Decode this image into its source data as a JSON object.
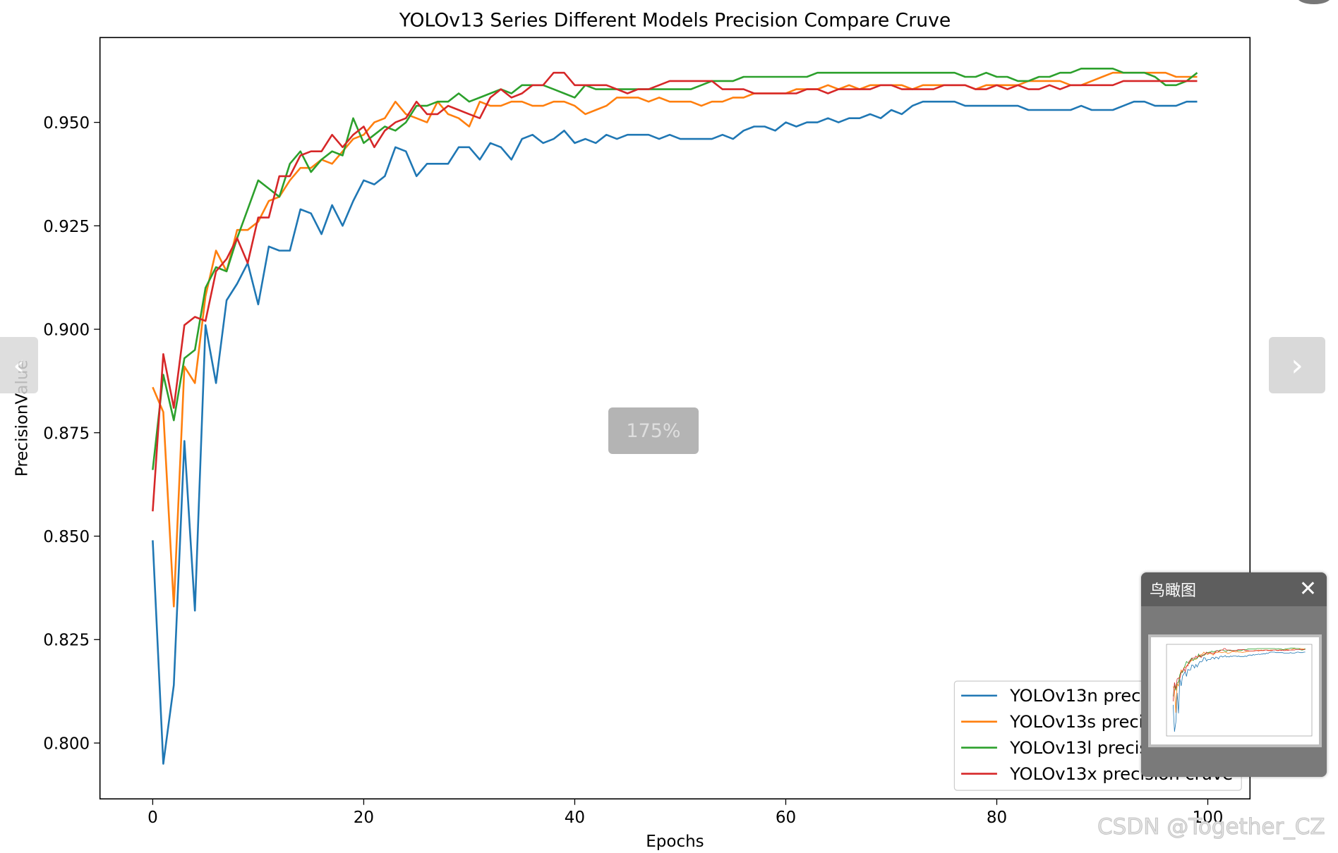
{
  "viewer": {
    "zoom_label": "175%",
    "prev_icon": "‹",
    "next_icon": "›",
    "icons": {
      "prev": "chevron-left-icon",
      "next": "chevron-right-icon",
      "close": "close-icon"
    }
  },
  "birdseye": {
    "title": "鸟瞰图",
    "close_symbol": "✕"
  },
  "watermark": "CSDN @Together_CZ",
  "chart_data": {
    "type": "line",
    "title": "YOLOv13 Series Different Models Precision Compare Cruve",
    "xlabel": "Epochs",
    "ylabel": "PrecisionValue",
    "xlim": [
      -5,
      104
    ],
    "ylim": [
      0.7865,
      0.9705
    ],
    "xticks": [
      0,
      20,
      40,
      60,
      80,
      100
    ],
    "xtick_labels": [
      "0",
      "20",
      "40",
      "60",
      "80",
      "100"
    ],
    "yticks": [
      0.8,
      0.825,
      0.85,
      0.875,
      0.9,
      0.925,
      0.95
    ],
    "ytick_labels": [
      "0.800",
      "0.825",
      "0.850",
      "0.875",
      "0.900",
      "0.925",
      "0.950"
    ],
    "grid": false,
    "legend_position": "lower-right",
    "x": [
      0,
      1,
      2,
      3,
      4,
      5,
      6,
      7,
      8,
      9,
      10,
      11,
      12,
      13,
      14,
      15,
      16,
      17,
      18,
      19,
      20,
      21,
      22,
      23,
      24,
      25,
      26,
      27,
      28,
      29,
      30,
      31,
      32,
      33,
      34,
      35,
      36,
      37,
      38,
      39,
      40,
      41,
      42,
      43,
      44,
      45,
      46,
      47,
      48,
      49,
      50,
      51,
      52,
      53,
      54,
      55,
      56,
      57,
      58,
      59,
      60,
      61,
      62,
      63,
      64,
      65,
      66,
      67,
      68,
      69,
      70,
      71,
      72,
      73,
      74,
      75,
      76,
      77,
      78,
      79,
      80,
      81,
      82,
      83,
      84,
      85,
      86,
      87,
      88,
      89,
      90,
      91,
      92,
      93,
      94,
      95,
      96,
      97,
      98,
      99
    ],
    "series": [
      {
        "name": "YOLOv13n precision cruve",
        "color": "#1f77b4",
        "values": [
          0.849,
          0.795,
          0.814,
          0.873,
          0.832,
          0.901,
          0.887,
          0.907,
          0.911,
          0.916,
          0.906,
          0.92,
          0.919,
          0.919,
          0.929,
          0.928,
          0.923,
          0.93,
          0.925,
          0.931,
          0.936,
          0.935,
          0.937,
          0.944,
          0.943,
          0.937,
          0.94,
          0.94,
          0.94,
          0.944,
          0.944,
          0.941,
          0.945,
          0.944,
          0.941,
          0.946,
          0.947,
          0.945,
          0.946,
          0.948,
          0.945,
          0.946,
          0.945,
          0.947,
          0.946,
          0.947,
          0.947,
          0.947,
          0.946,
          0.947,
          0.946,
          0.946,
          0.946,
          0.946,
          0.947,
          0.946,
          0.948,
          0.949,
          0.949,
          0.948,
          0.95,
          0.949,
          0.95,
          0.95,
          0.951,
          0.95,
          0.951,
          0.951,
          0.952,
          0.951,
          0.953,
          0.952,
          0.954,
          0.955,
          0.955,
          0.955,
          0.955,
          0.954,
          0.954,
          0.954,
          0.954,
          0.954,
          0.954,
          0.953,
          0.953,
          0.953,
          0.953,
          0.953,
          0.954,
          0.953,
          0.953,
          0.953,
          0.954,
          0.955,
          0.955,
          0.954,
          0.954,
          0.954,
          0.955,
          0.955
        ]
      },
      {
        "name": "YOLOv13s precision cruve",
        "color": "#ff7f0e",
        "values": [
          0.886,
          0.88,
          0.833,
          0.891,
          0.887,
          0.908,
          0.919,
          0.914,
          0.924,
          0.924,
          0.926,
          0.931,
          0.932,
          0.936,
          0.939,
          0.939,
          0.941,
          0.94,
          0.943,
          0.946,
          0.947,
          0.95,
          0.951,
          0.955,
          0.952,
          0.951,
          0.95,
          0.955,
          0.952,
          0.951,
          0.949,
          0.955,
          0.954,
          0.954,
          0.955,
          0.955,
          0.954,
          0.954,
          0.955,
          0.955,
          0.954,
          0.952,
          0.953,
          0.954,
          0.956,
          0.956,
          0.956,
          0.955,
          0.956,
          0.955,
          0.955,
          0.955,
          0.954,
          0.955,
          0.955,
          0.956,
          0.956,
          0.957,
          0.957,
          0.957,
          0.957,
          0.958,
          0.958,
          0.958,
          0.959,
          0.958,
          0.959,
          0.958,
          0.959,
          0.959,
          0.959,
          0.959,
          0.958,
          0.959,
          0.959,
          0.959,
          0.959,
          0.959,
          0.958,
          0.959,
          0.959,
          0.959,
          0.959,
          0.96,
          0.96,
          0.96,
          0.96,
          0.959,
          0.959,
          0.96,
          0.961,
          0.962,
          0.962,
          0.962,
          0.962,
          0.962,
          0.962,
          0.961,
          0.961,
          0.961
        ]
      },
      {
        "name": "YOLOv13l precision cruve",
        "color": "#2ca02c",
        "values": [
          0.866,
          0.889,
          0.878,
          0.893,
          0.895,
          0.91,
          0.915,
          0.914,
          0.922,
          0.929,
          0.936,
          0.934,
          0.932,
          0.94,
          0.943,
          0.938,
          0.941,
          0.943,
          0.942,
          0.951,
          0.945,
          0.947,
          0.949,
          0.948,
          0.95,
          0.954,
          0.954,
          0.955,
          0.955,
          0.957,
          0.955,
          0.956,
          0.957,
          0.958,
          0.957,
          0.959,
          0.959,
          0.959,
          0.958,
          0.957,
          0.956,
          0.959,
          0.958,
          0.958,
          0.958,
          0.958,
          0.958,
          0.958,
          0.958,
          0.958,
          0.958,
          0.958,
          0.959,
          0.96,
          0.96,
          0.96,
          0.961,
          0.961,
          0.961,
          0.961,
          0.961,
          0.961,
          0.961,
          0.962,
          0.962,
          0.962,
          0.962,
          0.962,
          0.962,
          0.962,
          0.962,
          0.962,
          0.962,
          0.962,
          0.962,
          0.962,
          0.962,
          0.961,
          0.961,
          0.962,
          0.961,
          0.961,
          0.96,
          0.96,
          0.961,
          0.961,
          0.962,
          0.962,
          0.963,
          0.963,
          0.963,
          0.963,
          0.962,
          0.962,
          0.962,
          0.961,
          0.959,
          0.959,
          0.96,
          0.962
        ]
      },
      {
        "name": "YOLOv13x precision cruve",
        "color": "#d62728",
        "values": [
          0.856,
          0.894,
          0.881,
          0.901,
          0.903,
          0.902,
          0.914,
          0.917,
          0.922,
          0.916,
          0.927,
          0.927,
          0.937,
          0.937,
          0.942,
          0.943,
          0.943,
          0.947,
          0.944,
          0.947,
          0.949,
          0.944,
          0.948,
          0.95,
          0.951,
          0.955,
          0.952,
          0.952,
          0.954,
          0.953,
          0.952,
          0.951,
          0.956,
          0.958,
          0.956,
          0.957,
          0.959,
          0.959,
          0.962,
          0.962,
          0.959,
          0.959,
          0.959,
          0.959,
          0.958,
          0.957,
          0.958,
          0.958,
          0.959,
          0.96,
          0.96,
          0.96,
          0.96,
          0.96,
          0.958,
          0.958,
          0.958,
          0.957,
          0.957,
          0.957,
          0.957,
          0.957,
          0.958,
          0.958,
          0.957,
          0.958,
          0.958,
          0.958,
          0.958,
          0.959,
          0.959,
          0.958,
          0.958,
          0.958,
          0.958,
          0.959,
          0.959,
          0.959,
          0.958,
          0.958,
          0.959,
          0.958,
          0.959,
          0.958,
          0.958,
          0.959,
          0.958,
          0.959,
          0.959,
          0.959,
          0.959,
          0.959,
          0.96,
          0.96,
          0.96,
          0.96,
          0.96,
          0.96,
          0.96,
          0.96
        ]
      }
    ]
  }
}
